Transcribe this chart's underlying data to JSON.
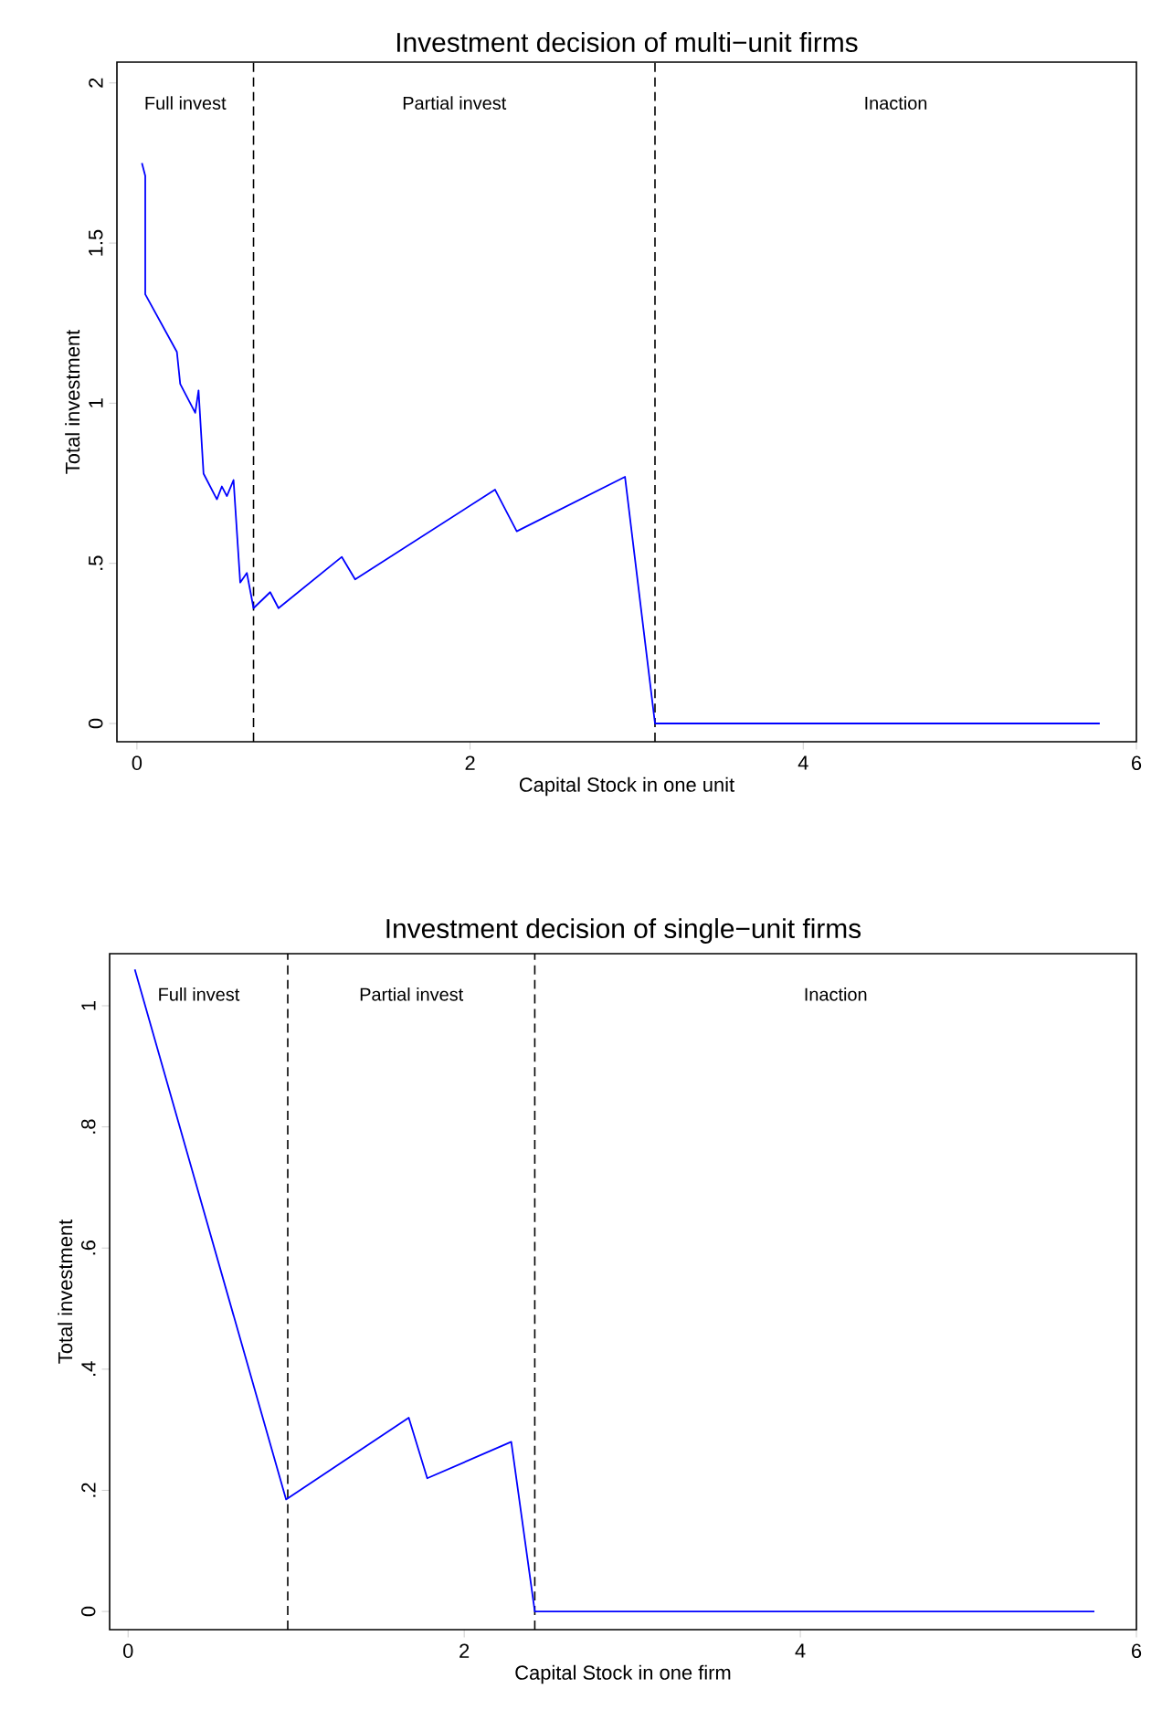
{
  "chart_data": [
    {
      "type": "line",
      "title": "Investment decision of multi−unit firms",
      "xlabel": "Capital Stock in one unit",
      "ylabel": "Total investment",
      "x": [
        0.03,
        0.05,
        0.05,
        0.24,
        0.26,
        0.35,
        0.37,
        0.4,
        0.48,
        0.51,
        0.54,
        0.58,
        0.62,
        0.66,
        0.7,
        0.8,
        0.85,
        1.23,
        1.31,
        2.15,
        2.28,
        2.93,
        3.11,
        5.78
      ],
      "series": [
        {
          "color": "#0000ff",
          "values": [
            1.75,
            1.71,
            1.34,
            1.16,
            1.06,
            0.97,
            1.04,
            0.78,
            0.7,
            0.74,
            0.71,
            0.76,
            0.44,
            0.47,
            0.36,
            0.41,
            0.36,
            0.52,
            0.45,
            0.73,
            0.6,
            0.77,
            0,
            0
          ]
        }
      ],
      "xlim": [
        -0.12,
        6.0
      ],
      "xticks": [
        0,
        2,
        4,
        6
      ],
      "ylim": [
        -0.057,
        2.065
      ],
      "yticks": [
        0,
        {
          "value": 0.5,
          "label": ".5"
        },
        1,
        {
          "value": 1.5,
          "label": "1.5"
        },
        2
      ],
      "ref_lines": [
        {
          "axis": "x",
          "value": 0.7,
          "color": "#000000",
          "line_style": "dashed"
        },
        {
          "axis": "x",
          "value": 3.11,
          "color": "#000000",
          "line_style": "dashed"
        }
      ],
      "annotations": [
        "Full invest",
        "Partial invest",
        "Inaction"
      ]
    },
    {
      "type": "line",
      "title": "Investment decision of single−unit firms",
      "xlabel": "Capital Stock in one firm",
      "ylabel": "Total investment",
      "x": [
        0.04,
        0.94,
        1.67,
        1.78,
        2.28,
        2.42,
        5.75
      ],
      "series": [
        {
          "color": "#0000ff",
          "values": [
            1.06,
            0.185,
            0.32,
            0.22,
            0.28,
            0,
            0
          ]
        }
      ],
      "xlim": [
        -0.11,
        6.0
      ],
      "xticks": [
        0,
        2,
        4,
        6
      ],
      "ylim": [
        -0.03,
        1.086
      ],
      "yticks": [
        0,
        {
          "value": 0.2,
          "label": ".2"
        },
        {
          "value": 0.4,
          "label": ".4"
        },
        {
          "value": 0.6,
          "label": ".6"
        },
        {
          "value": 0.8,
          "label": ".8"
        },
        1
      ],
      "ref_lines": [
        {
          "axis": "x",
          "value": 0.95,
          "color": "#000000",
          "line_style": "dashed"
        },
        {
          "axis": "x",
          "value": 2.42,
          "color": "#000000",
          "line_style": "dashed"
        }
      ],
      "annotations": [
        "Full invest",
        "Partial invest",
        "Inaction"
      ]
    }
  ]
}
